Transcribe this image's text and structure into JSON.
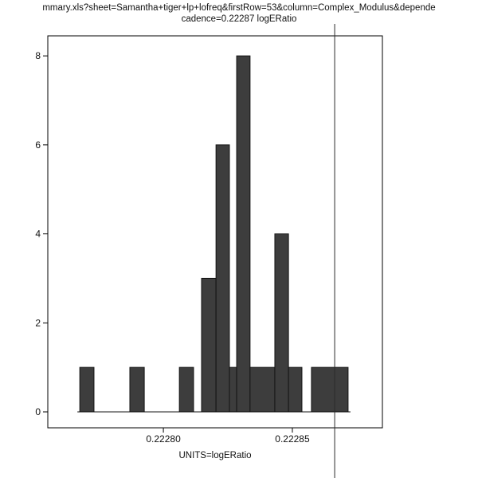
{
  "page": {
    "background": "#ffffff"
  },
  "chart_data": {
    "type": "histogram",
    "title_line1": "mmary.xls?sheet=Samantha+tiger+lp+lofreq&firstRow=53&column=Complex_Modulus&depende",
    "title_line2": "cadence=0.22287 logERatio",
    "xlabel": "UNITS=logERatio",
    "ylabel": "",
    "grid": false,
    "legend": "none",
    "xlim": [
      0.2227552,
      0.2228849
    ],
    "ylim": [
      0,
      8.45
    ],
    "x_ticks": [
      {
        "value": 0.2228,
        "label": "0.22280"
      },
      {
        "value": 0.22285,
        "label": "0.22285"
      }
    ],
    "y_ticks": [
      {
        "value": 0,
        "label": "0"
      },
      {
        "value": 2,
        "label": "2"
      },
      {
        "value": 4,
        "label": "4"
      },
      {
        "value": 6,
        "label": "6"
      },
      {
        "value": 8,
        "label": "8"
      }
    ],
    "bars": [
      {
        "x0": 0.2227676,
        "x1": 0.2227731,
        "count": 1
      },
      {
        "x0": 0.222787,
        "x1": 0.2227926,
        "count": 1
      },
      {
        "x0": 0.2228062,
        "x1": 0.2228117,
        "count": 1
      },
      {
        "x0": 0.2228148,
        "x1": 0.2228204,
        "count": 3
      },
      {
        "x0": 0.2228204,
        "x1": 0.2228256,
        "count": 6
      },
      {
        "x0": 0.2228256,
        "x1": 0.2228284,
        "count": 1
      },
      {
        "x0": 0.2228284,
        "x1": 0.2228336,
        "count": 8
      },
      {
        "x0": 0.2228336,
        "x1": 0.2228432,
        "count": 1
      },
      {
        "x0": 0.2228432,
        "x1": 0.2228485,
        "count": 4
      },
      {
        "x0": 0.2228485,
        "x1": 0.2228537,
        "count": 1
      },
      {
        "x0": 0.2228574,
        "x1": 0.2228716,
        "count": 1
      }
    ],
    "vline_x": 0.2228664,
    "colors": {
      "bar_fill": "#3d3d3d",
      "bar_stroke": "#141414",
      "axis": "#000000",
      "vline": "#2a2a2a",
      "text": "#111111"
    }
  }
}
